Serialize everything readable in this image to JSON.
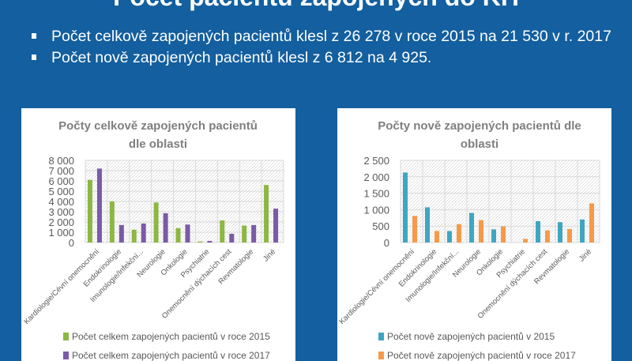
{
  "slide": {
    "title": "Počet pacientů zapojených do KH",
    "bullets": [
      "Počet celkově zapojených pacientů klesl z 26 278 v roce 2015 na 21 530 v r. 2017",
      "Počet nově zapojených pacientů klesl z 6 812 na 4 925."
    ]
  },
  "chart_data": [
    {
      "type": "bar",
      "title_lines": [
        "Počty celkově zapojených pacientů",
        "dle oblasti"
      ],
      "categories": [
        "Kardiologie/Cévní onemocnění",
        "Endokrinologie",
        "Imunologie/Infekční...",
        "Neurologie",
        "Onkologie",
        "Psychiatrie",
        "Onemocnění dýchacích cest",
        "Revmatologie",
        "Jiné"
      ],
      "series": [
        {
          "name": "Počet celkem zapojených pacientů v roce 2015",
          "color": "#8db743",
          "values": [
            6100,
            4000,
            1250,
            3900,
            1400,
            100,
            2150,
            1650,
            5600
          ]
        },
        {
          "name": "Počet celkem zapojených pacientů v roce 2017",
          "color": "#7b5aa6",
          "values": [
            7200,
            1700,
            1850,
            2850,
            1750,
            150,
            850,
            1700,
            3300
          ]
        }
      ],
      "yticks": [
        "0",
        "1 000",
        "2 000",
        "3 000",
        "4 000",
        "5 000",
        "6 000",
        "7 000",
        "8 000"
      ],
      "ylim": [
        0,
        8000
      ],
      "grid": true,
      "legend": "bottom"
    },
    {
      "type": "bar",
      "title_lines": [
        "Počty nově zapojených pacientů dle",
        "oblasti"
      ],
      "categories": [
        "Kardiologie/Cévní onemocnění",
        "Endokrinologie",
        "Imunologie/Infekční...",
        "Neurologie",
        "Onkologie",
        "Psychiatrie",
        "Onemocnění dýchacích cest",
        "Revmatologie",
        "Jiné"
      ],
      "series": [
        {
          "name": "Počet nově zapojených pacientů v 2015",
          "color": "#3ea6c2",
          "values": [
            2130,
            1070,
            350,
            900,
            400,
            0,
            650,
            620,
            700
          ]
        },
        {
          "name": "Počet nově zapojených pacientů v roce 2017",
          "color": "#f59a4a",
          "values": [
            810,
            350,
            560,
            680,
            490,
            110,
            370,
            410,
            1190
          ]
        }
      ],
      "yticks": [
        "0",
        "500",
        "1 000",
        "1 500",
        "2 000",
        "2 500"
      ],
      "ylim": [
        0,
        2500
      ],
      "grid": true,
      "legend": "bottom"
    }
  ]
}
